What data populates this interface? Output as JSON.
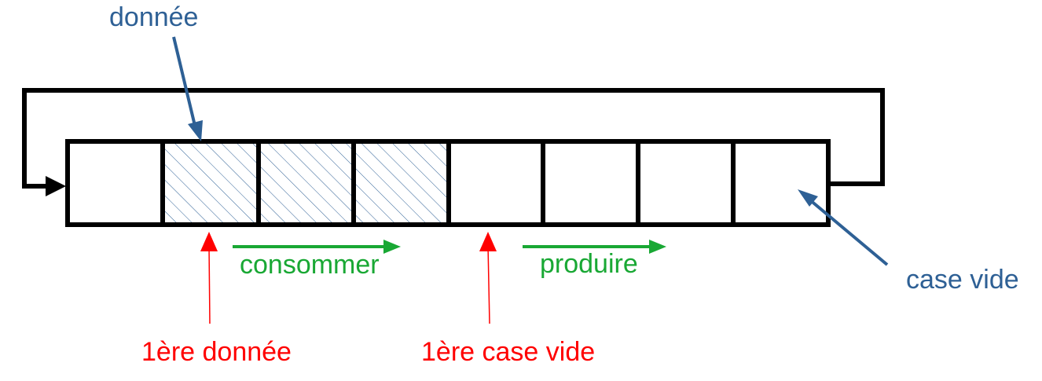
{
  "labels": {
    "data_cell": "donnée",
    "empty_cell": "case vide",
    "consume": "consommer",
    "produce": "produire",
    "first_data": "1ère donnée",
    "first_empty": "1ère case vide"
  },
  "buffer": {
    "cell_count": 8,
    "filled_cells": [
      1,
      2,
      3
    ]
  },
  "colors": {
    "blue": "#2e6095",
    "green": "#19a834",
    "red": "#ff0000",
    "black": "#000000",
    "hatch": "#2e6095"
  }
}
